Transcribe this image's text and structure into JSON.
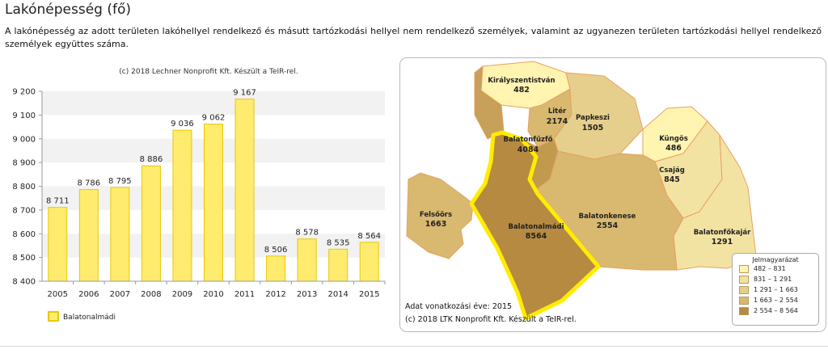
{
  "page": {
    "title": "Lakónépesség (fő)",
    "description": "A lakónépesség az adott területen lakóhellyel rendelkező és másutt tartózkodási hellyel nem rendelkező személyek, valamint az ugyanezen területen tartózkodási hellyel rendelkező személyek együttes száma."
  },
  "chart_data": [
    {
      "type": "bar",
      "copyright": "(c) 2018 Lechner Nonprofit Kft. Készült a TeIR-rel.",
      "categories": [
        "2005",
        "2006",
        "2007",
        "2008",
        "2009",
        "2010",
        "2011",
        "2012",
        "2013",
        "2014",
        "2015"
      ],
      "series": [
        {
          "name": "Balatonalmádi",
          "values": [
            8711,
            8786,
            8795,
            8886,
            9036,
            9062,
            9167,
            8506,
            8578,
            8535,
            8564
          ],
          "value_labels": [
            "8 711",
            "8 786",
            "8 795",
            "8 886",
            "9 036",
            "9 062",
            "9 167",
            "8 506",
            "8 578",
            "8 535",
            "8 564"
          ],
          "color": "#ffeb6e",
          "stroke": "#e8c800"
        }
      ],
      "ylim": [
        8400,
        9200
      ],
      "yticks": [
        8400,
        8500,
        8600,
        8700,
        8800,
        8900,
        9000,
        9100,
        9200
      ],
      "ytick_labels": [
        "8 400",
        "8 500",
        "8 600",
        "8 700",
        "8 800",
        "8 900",
        "9 000",
        "9 100",
        "9 200"
      ],
      "legend_position": "bottom-left",
      "grid": "horizontal bands"
    }
  ],
  "map": {
    "regions": [
      {
        "id": "kiralyszentistvan",
        "name": "Királyszentistván",
        "value": "482",
        "color": "#fff4b0"
      },
      {
        "id": "liter",
        "name": "Litér",
        "value": "2174",
        "color": "#d9b870"
      },
      {
        "id": "papkeszi",
        "name": "Papkeszi",
        "value": "1505",
        "color": "#e6cf8c"
      },
      {
        "id": "kungos",
        "name": "Küngös",
        "value": "486",
        "color": "#fff4b0"
      },
      {
        "id": "csajag",
        "name": "Csajág",
        "value": "845",
        "color": "#f3e3a3"
      },
      {
        "id": "balatonfuzfo",
        "name": "Balatonfűzfő",
        "value": "4084",
        "color": "#c19a4e"
      },
      {
        "id": "felsoors",
        "name": "Felsőörs",
        "value": "1663",
        "color": "#d9b870"
      },
      {
        "id": "balatonalmadi",
        "name": "Balatonalmádi",
        "value": "8564",
        "color": "#b68a40"
      },
      {
        "id": "balatonkenese",
        "name": "Balatonkenese",
        "value": "2554",
        "color": "#d9b870"
      },
      {
        "id": "balatonfokajar",
        "name": "Balatonfőkajár",
        "value": "1291",
        "color": "#f3e3a3"
      }
    ],
    "legend": {
      "title": "Jelmagyarázat",
      "items": [
        {
          "label": "482 –   831",
          "color": "#fff4b0"
        },
        {
          "label": "831 – 1 291",
          "color": "#f3e3a3"
        },
        {
          "label": "1 291 – 1 663",
          "color": "#e6cf8c"
        },
        {
          "label": "1 663 – 2 554",
          "color": "#d9b870"
        },
        {
          "label": "2 554 – 8 564",
          "color": "#b68a40"
        }
      ]
    },
    "data_year": "Adat vonatkozási éve: 2015",
    "copyright": "(c) 2018 LTK Nonprofit Kft. Készült a TeIR-rel."
  }
}
